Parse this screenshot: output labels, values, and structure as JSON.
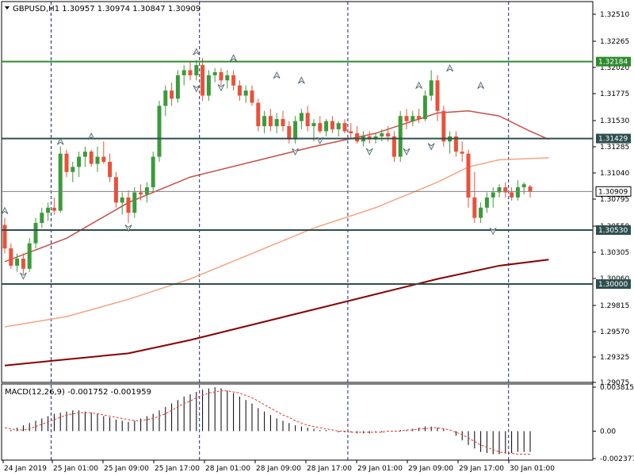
{
  "chart_data": [
    {
      "type": "candlestick",
      "symbol_header": "GBPUSD,H1",
      "ohlc_header": [
        "1.30957",
        "1.30974",
        "1.30847",
        "1.30909"
      ],
      "price_ticks": [
        "1.32510",
        "1.32265",
        "1.32020",
        "1.31775",
        "1.31530",
        "1.31285",
        "1.31040",
        "1.30795",
        "1.30550",
        "1.30305",
        "1.30060",
        "1.29815",
        "1.29570",
        "1.29325",
        "1.29075"
      ],
      "time_ticks": [
        "24 Jan 2019",
        "25 Jan 01:00",
        "25 Jan 09:00",
        "25 Jan 17:00",
        "28 Jan 01:00",
        "28 Jan 09:00",
        "28 Jan 17:00",
        "29 Jan 01:00",
        "29 Jan 09:00",
        "29 Jan 17:00",
        "30 Jan 01:00"
      ],
      "ylim": [
        1.2905,
        1.3275
      ],
      "levels": [
        {
          "price": 1.32184,
          "label": "1.32184",
          "color": "#2e8b2e"
        },
        {
          "price": 1.31429,
          "label": "1.31429",
          "color": "#2f4f4f"
        },
        {
          "price": 1.3053,
          "label": "1.30530",
          "color": "#2f4f4f"
        },
        {
          "price": 1.3,
          "label": "1.30000",
          "color": "#2f4f4f"
        }
      ],
      "current_price": {
        "price": 1.30909,
        "label": "1.30909",
        "color": "#808080"
      },
      "candles": [
        [
          1.3058,
          1.3065,
          1.303,
          1.3035
        ],
        [
          1.3035,
          1.304,
          1.3015,
          1.3018
        ],
        [
          1.3018,
          1.303,
          1.3012,
          1.3025
        ],
        [
          1.3025,
          1.303,
          1.301,
          1.3015
        ],
        [
          1.3015,
          1.3045,
          1.3012,
          1.304
        ],
        [
          1.304,
          1.3065,
          1.3035,
          1.306
        ],
        [
          1.306,
          1.3075,
          1.3055,
          1.307
        ],
        [
          1.307,
          1.308,
          1.3062,
          1.3075
        ],
        [
          1.3075,
          1.3085,
          1.3068,
          1.3072
        ],
        [
          1.3072,
          1.3135,
          1.307,
          1.3128
        ],
        [
          1.3128,
          1.3132,
          1.3105,
          1.311
        ],
        [
          1.311,
          1.312,
          1.31,
          1.3115
        ],
        [
          1.3115,
          1.313,
          1.3105,
          1.3125
        ],
        [
          1.3125,
          1.3135,
          1.3115,
          1.313
        ],
        [
          1.313,
          1.3132,
          1.3115,
          1.3118
        ],
        [
          1.3118,
          1.3135,
          1.311,
          1.3125
        ],
        [
          1.3125,
          1.314,
          1.3118,
          1.312
        ],
        [
          1.312,
          1.3128,
          1.31,
          1.3105
        ],
        [
          1.3105,
          1.311,
          1.3075,
          1.308
        ],
        [
          1.308,
          1.309,
          1.3068,
          1.3085
        ],
        [
          1.3085,
          1.3092,
          1.306,
          1.307
        ],
        [
          1.307,
          1.3095,
          1.3065,
          1.309
        ],
        [
          1.309,
          1.3098,
          1.3082,
          1.3088
        ],
        [
          1.3088,
          1.31,
          1.308,
          1.3095
        ],
        [
          1.3095,
          1.313,
          1.309,
          1.3125
        ],
        [
          1.3125,
          1.318,
          1.312,
          1.3175
        ],
        [
          1.3175,
          1.3195,
          1.3165,
          1.319
        ],
        [
          1.319,
          1.3198,
          1.3175,
          1.3182
        ],
        [
          1.3182,
          1.321,
          1.3178,
          1.3205
        ],
        [
          1.3205,
          1.3215,
          1.3195,
          1.321
        ],
        [
          1.321,
          1.3218,
          1.32,
          1.3205
        ],
        [
          1.3205,
          1.322,
          1.32,
          1.3215
        ],
        [
          1.3215,
          1.3222,
          1.318,
          1.3185
        ],
        [
          1.3185,
          1.321,
          1.318,
          1.3205
        ],
        [
          1.3205,
          1.3212,
          1.3198,
          1.3208
        ],
        [
          1.3208,
          1.3212,
          1.3195,
          1.32
        ],
        [
          1.32,
          1.321,
          1.3192,
          1.3205
        ],
        [
          1.3205,
          1.321,
          1.319,
          1.3195
        ],
        [
          1.3195,
          1.32,
          1.318,
          1.3185
        ],
        [
          1.3185,
          1.3195,
          1.3178,
          1.319
        ],
        [
          1.319,
          1.3195,
          1.3175,
          1.3178
        ],
        [
          1.3178,
          1.3182,
          1.315,
          1.3155
        ],
        [
          1.3155,
          1.317,
          1.3148,
          1.3165
        ],
        [
          1.3165,
          1.3172,
          1.315,
          1.3155
        ],
        [
          1.3155,
          1.3168,
          1.3148,
          1.3162
        ],
        [
          1.3162,
          1.317,
          1.315,
          1.3155
        ],
        [
          1.3155,
          1.316,
          1.3138,
          1.3142
        ],
        [
          1.3142,
          1.3165,
          1.3138,
          1.316
        ],
        [
          1.316,
          1.3172,
          1.3152,
          1.3168
        ],
        [
          1.3168,
          1.3175,
          1.315,
          1.3155
        ],
        [
          1.3155,
          1.3162,
          1.314,
          1.3158
        ],
        [
          1.3158,
          1.3165,
          1.3148,
          1.315
        ],
        [
          1.315,
          1.3162,
          1.3145,
          1.316
        ],
        [
          1.316,
          1.3165,
          1.3148,
          1.3152
        ],
        [
          1.3152,
          1.316,
          1.3145,
          1.3158
        ],
        [
          1.3158,
          1.3162,
          1.3148,
          1.315
        ],
        [
          1.315,
          1.3158,
          1.3142,
          1.3148
        ],
        [
          1.3148,
          1.3155,
          1.3138,
          1.314
        ],
        [
          1.314,
          1.315,
          1.3135,
          1.3145
        ],
        [
          1.3145,
          1.315,
          1.3138,
          1.3142
        ],
        [
          1.3142,
          1.3148,
          1.3138,
          1.3145
        ],
        [
          1.3145,
          1.3152,
          1.314,
          1.3148
        ],
        [
          1.3148,
          1.3155,
          1.314,
          1.3145
        ],
        [
          1.3145,
          1.315,
          1.312,
          1.3125
        ],
        [
          1.3125,
          1.317,
          1.312,
          1.3165
        ],
        [
          1.3165,
          1.3172,
          1.3152,
          1.316
        ],
        [
          1.316,
          1.317,
          1.3155,
          1.3165
        ],
        [
          1.3165,
          1.3172,
          1.3158,
          1.3162
        ],
        [
          1.3162,
          1.319,
          1.316,
          1.3185
        ],
        [
          1.3185,
          1.321,
          1.318,
          1.32
        ],
        [
          1.32,
          1.3205,
          1.316,
          1.317
        ],
        [
          1.317,
          1.3175,
          1.3135,
          1.314
        ],
        [
          1.314,
          1.315,
          1.3128,
          1.3145
        ],
        [
          1.3145,
          1.315,
          1.3125,
          1.313
        ],
        [
          1.313,
          1.314,
          1.312,
          1.3128
        ],
        [
          1.3128,
          1.3132,
          1.3075,
          1.3085
        ],
        [
          1.3085,
          1.311,
          1.306,
          1.3065
        ],
        [
          1.3065,
          1.308,
          1.306,
          1.3075
        ],
        [
          1.3075,
          1.309,
          1.307,
          1.3085
        ],
        [
          1.3085,
          1.3095,
          1.3075,
          1.309
        ],
        [
          1.309,
          1.3098,
          1.3085,
          1.3095
        ],
        [
          1.3095,
          1.31,
          1.3085,
          1.309
        ],
        [
          1.309,
          1.3095,
          1.3082,
          1.3085
        ],
        [
          1.3085,
          1.3102,
          1.3082,
          1.3095
        ],
        [
          1.3095,
          1.31,
          1.3088,
          1.3098
        ],
        [
          1.30957,
          1.30974,
          1.30847,
          1.30909
        ]
      ],
      "moving_averages": [
        {
          "color": "#c8504a",
          "values": [
            [
              0,
              1.3022
            ],
            [
              10,
              1.3045
            ],
            [
              20,
              1.308
            ],
            [
              30,
              1.3105
            ],
            [
              40,
              1.312
            ],
            [
              50,
              1.3135
            ],
            [
              60,
              1.3148
            ],
            [
              66,
              1.316
            ],
            [
              70,
              1.3168
            ],
            [
              75,
              1.317
            ],
            [
              80,
              1.3165
            ],
            [
              85,
              1.315
            ],
            [
              88,
              1.3142
            ]
          ]
        },
        {
          "color": "#f4a582",
          "values": [
            [
              0,
              1.2958
            ],
            [
              10,
              1.2968
            ],
            [
              20,
              1.2985
            ],
            [
              30,
              1.3005
            ],
            [
              40,
              1.303
            ],
            [
              50,
              1.3055
            ],
            [
              60,
              1.3075
            ],
            [
              70,
              1.31
            ],
            [
              75,
              1.3115
            ],
            [
              80,
              1.3122
            ],
            [
              88,
              1.3124
            ]
          ]
        },
        {
          "color": "#8b0000",
          "values": [
            [
              0,
              1.292
            ],
            [
              10,
              1.2926
            ],
            [
              20,
              1.2932
            ],
            [
              30,
              1.2945
            ],
            [
              40,
              1.296
            ],
            [
              50,
              1.2975
            ],
            [
              60,
              1.299
            ],
            [
              70,
              1.3005
            ],
            [
              80,
              1.3018
            ],
            [
              88,
              1.3024
            ]
          ]
        }
      ],
      "fractal_arrows": [
        {
          "i": 3,
          "price": 1.3008,
          "dir": "down"
        },
        {
          "i": 0,
          "price": 1.3072,
          "dir": "up"
        },
        {
          "i": 9,
          "price": 1.314,
          "dir": "up"
        },
        {
          "i": 14,
          "price": 1.3145,
          "dir": "up"
        },
        {
          "i": 20,
          "price": 1.3055,
          "dir": "down"
        },
        {
          "i": 31,
          "price": 1.3228,
          "dir": "up"
        },
        {
          "i": 31,
          "price": 1.3192,
          "dir": "down"
        },
        {
          "i": 35,
          "price": 1.3193,
          "dir": "down"
        },
        {
          "i": 37,
          "price": 1.3222,
          "dir": "up"
        },
        {
          "i": 44,
          "price": 1.3205,
          "dir": "up"
        },
        {
          "i": 48,
          "price": 1.32,
          "dir": "up"
        },
        {
          "i": 47,
          "price": 1.313,
          "dir": "down"
        },
        {
          "i": 51,
          "price": 1.3141,
          "dir": "down"
        },
        {
          "i": 59,
          "price": 1.313,
          "dir": "down"
        },
        {
          "i": 65,
          "price": 1.313,
          "dir": "down"
        },
        {
          "i": 67,
          "price": 1.3195,
          "dir": "up"
        },
        {
          "i": 69,
          "price": 1.3135,
          "dir": "down"
        },
        {
          "i": 72,
          "price": 1.3212,
          "dir": "up"
        },
        {
          "i": 77,
          "price": 1.3195,
          "dir": "up"
        },
        {
          "i": 79,
          "price": 1.3052,
          "dir": "down"
        }
      ]
    },
    {
      "type": "bar",
      "label": "MACD(12,26,9) -0.001752 -0.001959",
      "ticks": [
        "0.003815",
        "0.00",
        "-0.002377"
      ],
      "ylim": [
        -0.002377,
        0.003815
      ],
      "main": [
        0.0,
        0.0001,
        0.0003,
        0.0005,
        0.0007,
        0.0009,
        0.0011,
        0.0013,
        0.0015,
        0.0016,
        0.0017,
        0.0018,
        0.0018,
        0.0017,
        0.0016,
        0.0015,
        0.0013,
        0.0012,
        0.001,
        0.0009,
        0.0008,
        0.0009,
        0.0011,
        0.0013,
        0.0015,
        0.0018,
        0.0021,
        0.0024,
        0.0027,
        0.003,
        0.0032,
        0.0034,
        0.0036,
        0.0037,
        0.0038,
        0.0037,
        0.0035,
        0.0033,
        0.003,
        0.0027,
        0.0024,
        0.002,
        0.0017,
        0.0014,
        0.0011,
        0.0009,
        0.0007,
        0.0005,
        0.0004,
        0.0003,
        0.0002,
        0.0001,
        0.0001,
        0.0,
        -0.0001,
        -0.0001,
        -0.0001,
        -0.0002,
        -0.0002,
        -0.0002,
        -0.0001,
        -0.0001,
        0.0,
        0.0,
        0.0001,
        0.0001,
        0.0002,
        0.0003,
        0.0004,
        0.0004,
        0.0003,
        0.0002,
        0.0,
        -0.0004,
        -0.0008,
        -0.0012,
        -0.0015,
        -0.0018,
        -0.0019,
        -0.002,
        -0.002,
        -0.0019,
        -0.0019,
        -0.0018,
        -0.0018,
        -0.0018
      ],
      "signal": [
        0.0003,
        0.0002,
        0.0001,
        0.0001,
        0.0002,
        0.0004,
        0.0006,
        0.0008,
        0.001,
        0.0012,
        0.0014,
        0.0015,
        0.0016,
        0.0016,
        0.0016,
        0.0015,
        0.0014,
        0.0013,
        0.0012,
        0.0011,
        0.001,
        0.0009,
        0.0009,
        0.001,
        0.0011,
        0.0013,
        0.0015,
        0.0018,
        0.0021,
        0.0024,
        0.0026,
        0.0029,
        0.0031,
        0.0033,
        0.0034,
        0.0035,
        0.0035,
        0.0034,
        0.0033,
        0.0031,
        0.0029,
        0.0026,
        0.0023,
        0.002,
        0.0017,
        0.0014,
        0.0012,
        0.0009,
        0.0007,
        0.0005,
        0.0004,
        0.0003,
        0.0002,
        0.0001,
        0.0,
        0.0,
        -0.0001,
        -0.0001,
        -0.0001,
        -0.0001,
        -0.0001,
        -0.0001,
        0.0,
        0.0,
        0.0,
        0.0001,
        0.0001,
        0.0002,
        0.0002,
        0.0003,
        0.0003,
        0.0002,
        0.0001,
        -0.0001,
        -0.0003,
        -0.0006,
        -0.0009,
        -0.0012,
        -0.0014,
        -0.0016,
        -0.0018,
        -0.0019,
        -0.0019,
        -0.002,
        -0.002,
        -0.002
      ],
      "main_color": "#000000",
      "signal_color": "#e23b3b"
    }
  ]
}
